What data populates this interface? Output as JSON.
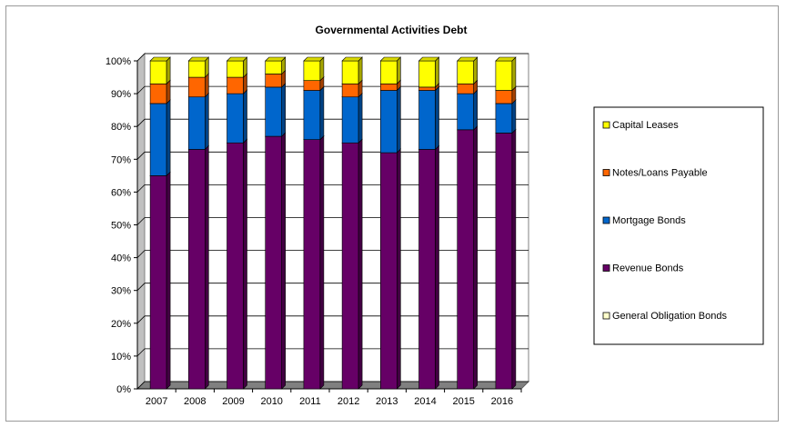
{
  "chart_data": {
    "type": "bar",
    "stacked": "percent",
    "title": "Governmental Activities Debt",
    "xlabel": "",
    "ylabel": "",
    "categories": [
      "2007",
      "2008",
      "2009",
      "2010",
      "2011",
      "2012",
      "2013",
      "2014",
      "2015",
      "2016"
    ],
    "ylim": [
      0,
      100
    ],
    "yticks": [
      "0%",
      "10%",
      "20%",
      "30%",
      "40%",
      "50%",
      "60%",
      "70%",
      "80%",
      "90%",
      "100%"
    ],
    "grid": true,
    "legend_position": "right",
    "series": [
      {
        "name": "General Obligation Bonds",
        "color": "#ffffcc",
        "values": [
          0,
          0,
          0,
          0,
          0,
          0,
          0,
          0,
          0,
          0
        ]
      },
      {
        "name": "Revenue Bonds",
        "color": "#660066",
        "values": [
          65,
          73,
          75,
          77,
          76,
          75,
          72,
          73,
          79,
          78
        ]
      },
      {
        "name": "Mortgage Bonds",
        "color": "#0066cc",
        "values": [
          22,
          16,
          15,
          15,
          15,
          14,
          19,
          18,
          11,
          9
        ]
      },
      {
        "name": "Notes/Loans Payable",
        "color": "#ff6600",
        "values": [
          6,
          6,
          5,
          4,
          3,
          4,
          2,
          1,
          3,
          4
        ]
      },
      {
        "name": "Capital Leases",
        "color": "#ffff00",
        "values": [
          7,
          5,
          5,
          4,
          6,
          7,
          7,
          8,
          7,
          9
        ]
      }
    ],
    "legend_order": [
      "Capital Leases",
      "Notes/Loans Payable",
      "Mortgage Bonds",
      "Revenue Bonds",
      "General Obligation Bonds"
    ]
  }
}
